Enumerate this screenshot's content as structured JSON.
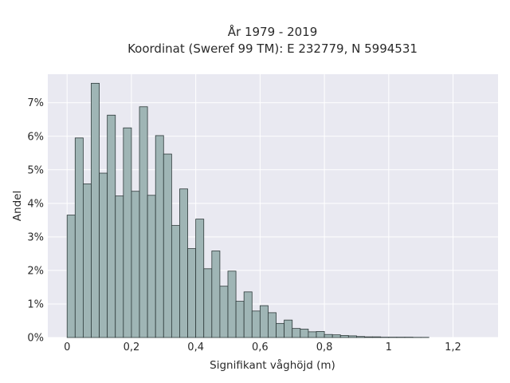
{
  "chart_data": {
    "type": "bar",
    "title": "År 1979 - 2019",
    "subtitle": "Koordinat (Sweref 99 TM): E 232779, N 5994531",
    "xlabel": "Signifikant våghöjd (m)",
    "ylabel": "Andel",
    "xlim": [
      -0.06,
      1.34
    ],
    "ylim": [
      0,
      7.85
    ],
    "x_ticks": [
      0,
      0.2,
      0.4,
      0.6,
      0.8,
      1,
      1.2
    ],
    "x_tick_labels": [
      "0",
      "0,2",
      "0,4",
      "0,6",
      "0,8",
      "1",
      "1,2"
    ],
    "y_ticks": [
      0,
      1,
      2,
      3,
      4,
      5,
      6,
      7
    ],
    "y_tick_labels": [
      "0%",
      "1%",
      "2%",
      "3%",
      "4%",
      "5%",
      "6%",
      "7%"
    ],
    "grid": true,
    "bin_width": 0.025,
    "x": [
      0,
      0.025,
      0.05,
      0.075,
      0.1,
      0.125,
      0.15,
      0.175,
      0.2,
      0.225,
      0.25,
      0.275,
      0.3,
      0.325,
      0.35,
      0.375,
      0.4,
      0.425,
      0.45,
      0.475,
      0.5,
      0.525,
      0.55,
      0.575,
      0.6,
      0.625,
      0.65,
      0.675,
      0.7,
      0.725,
      0.75,
      0.775,
      0.8,
      0.825,
      0.85,
      0.875,
      0.9,
      0.925,
      0.95,
      0.975,
      1.0,
      1.025,
      1.05,
      1.075,
      1.1
    ],
    "values": [
      3.65,
      5.95,
      4.58,
      7.58,
      4.9,
      6.63,
      4.22,
      6.25,
      4.36,
      6.88,
      4.24,
      6.02,
      5.47,
      3.34,
      4.43,
      2.65,
      3.53,
      2.05,
      2.58,
      1.53,
      1.98,
      1.08,
      1.36,
      0.79,
      0.95,
      0.74,
      0.42,
      0.52,
      0.27,
      0.25,
      0.17,
      0.18,
      0.09,
      0.08,
      0.06,
      0.05,
      0.03,
      0.02,
      0.02,
      0.01,
      0.01,
      0.01,
      0.01,
      0.005,
      0.005
    ],
    "colors": {
      "bar_fill": "#9fb5b5",
      "bar_stroke": "#2e3a3a",
      "plot_bg": "#e9e9f1",
      "grid": "#ffffff"
    }
  }
}
